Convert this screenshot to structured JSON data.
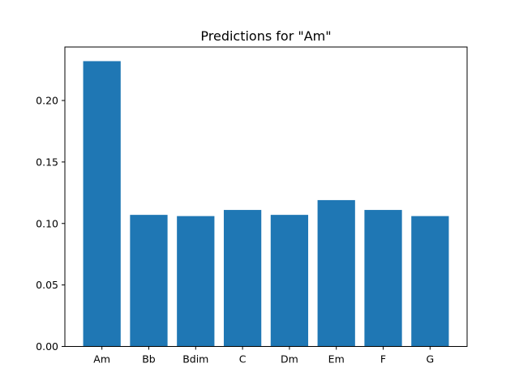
{
  "chart_data": {
    "type": "bar",
    "title": "Predictions for \"Am\"",
    "xlabel": "",
    "ylabel": "",
    "categories": [
      "Am",
      "Bb",
      "Bdim",
      "C",
      "Dm",
      "Em",
      "F",
      "G"
    ],
    "values": [
      0.232,
      0.107,
      0.106,
      0.111,
      0.107,
      0.119,
      0.111,
      0.106
    ],
    "ylim": [
      0,
      0.2435
    ],
    "yticks": [
      0.0,
      0.05,
      0.1,
      0.15,
      0.2
    ],
    "ytick_labels": [
      "0.00",
      "0.05",
      "0.10",
      "0.15",
      "0.20"
    ],
    "grid": false,
    "bar_color": "#1f77b4"
  }
}
